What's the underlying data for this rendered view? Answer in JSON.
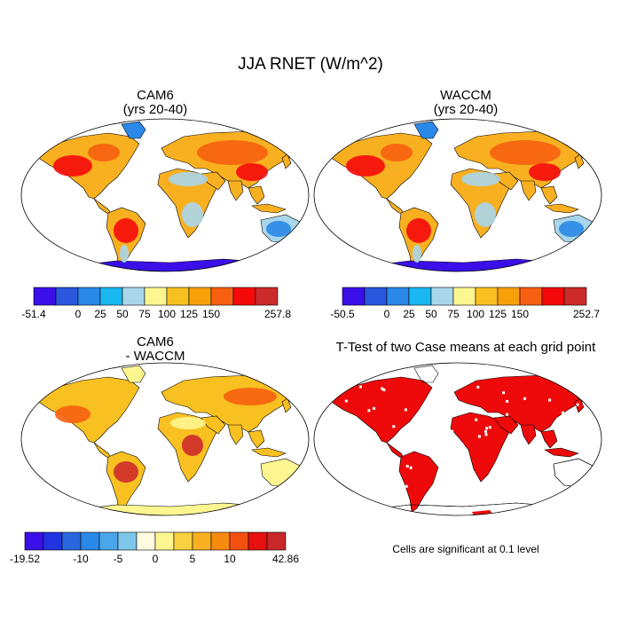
{
  "title": "JJA RNET (W/m^2)",
  "panels": [
    {
      "id": "cam6",
      "title_line1": "CAM6",
      "title_line2": "(yrs 20-40)",
      "colorbar": {
        "colors": [
          "#3a0fe8",
          "#2a55dd",
          "#2a88e8",
          "#19b8f0",
          "#a8d6ea",
          "#fdf690",
          "#f8c020",
          "#f8a00a",
          "#f66010",
          "#f50a0a",
          "#cd2a2a"
        ],
        "labels": [
          "-51.4",
          "0",
          "25",
          "50",
          "75",
          "100",
          "125",
          "150",
          "257.8"
        ],
        "label_boxes": [
          0,
          2,
          3,
          4,
          5,
          6,
          7,
          8,
          11
        ]
      }
    },
    {
      "id": "waccm",
      "title_line1": "WACCM",
      "title_line2": "(yrs 20-40)",
      "colorbar": {
        "colors": [
          "#3a0fe8",
          "#2a55dd",
          "#2a88e8",
          "#19b8f0",
          "#a8d6ea",
          "#fdf690",
          "#f8c020",
          "#f8a00a",
          "#f66010",
          "#f50a0a",
          "#cd2a2a"
        ],
        "labels": [
          "-50.5",
          "0",
          "25",
          "50",
          "75",
          "100",
          "125",
          "150",
          "252.7"
        ],
        "label_boxes": [
          0,
          2,
          3,
          4,
          5,
          6,
          7,
          8,
          11
        ]
      }
    },
    {
      "id": "diff",
      "title_line1": "CAM6",
      "title_line2": "- WACCM",
      "colorbar": {
        "colors": [
          "#3a0fe8",
          "#2233e2",
          "#2a66dd",
          "#2a88e8",
          "#4aa6ea",
          "#7cc6ea",
          "#fffbe0",
          "#fdf690",
          "#f8d040",
          "#f8b020",
          "#f88a10",
          "#f65010",
          "#e81010",
          "#c82828"
        ],
        "labels": [
          "-19.52",
          "-10",
          "-5",
          "0",
          "5",
          "10",
          "42.86"
        ],
        "label_boxes": [
          0,
          3,
          5,
          7,
          9,
          11,
          14
        ]
      }
    },
    {
      "id": "ttest",
      "title_line1": "T-Test of two Case means at each grid point",
      "note": "Cells are significant at 0.1 level"
    }
  ],
  "colors": {
    "land_base": "#f8b020",
    "warm": "#f66010",
    "hot": "#f50a0a",
    "desert": "#a8d6ea",
    "cool": "#2a88e8",
    "antarctica": "#3a0fe8",
    "diff_base": "#f8c020",
    "diff_light": "#fdf690",
    "diff_hot": "#cd2a2a",
    "signif": "#ee0a0a"
  }
}
